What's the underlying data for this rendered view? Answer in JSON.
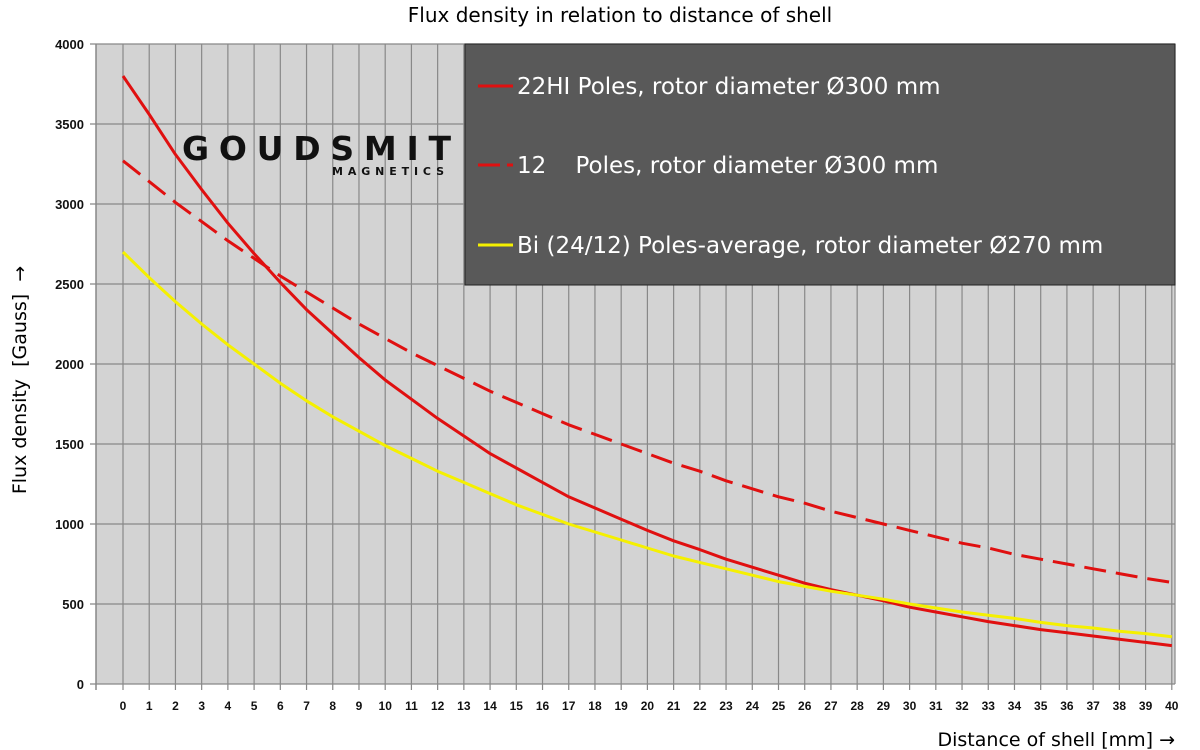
{
  "chart_data": {
    "type": "line",
    "title": "Flux density in relation to distance of shell",
    "xlabel": "Distance of shell [mm] →",
    "ylabel": "Flux density  [Gauss]  →",
    "xlim": [
      -1,
      40
    ],
    "ylim": [
      0,
      4000
    ],
    "yticks": [
      0,
      500,
      1000,
      1500,
      2000,
      2500,
      3000,
      3500,
      4000
    ],
    "xticks": [
      0,
      1,
      2,
      3,
      4,
      5,
      6,
      7,
      8,
      9,
      10,
      11,
      12,
      13,
      14,
      15,
      16,
      17,
      18,
      19,
      20,
      21,
      22,
      23,
      24,
      25,
      26,
      27,
      28,
      29,
      30,
      31,
      32,
      33,
      34,
      35,
      36,
      37,
      38,
      39,
      40
    ],
    "grid": true,
    "plot_background": "#d3d3d3",
    "legend_position": "top-right",
    "legend_background": "#595959",
    "x": [
      0,
      1,
      2,
      3,
      4,
      5,
      6,
      7,
      8,
      9,
      10,
      11,
      12,
      13,
      14,
      15,
      16,
      17,
      18,
      19,
      20,
      21,
      22,
      23,
      24,
      25,
      26,
      27,
      28,
      29,
      30,
      31,
      32,
      33,
      34,
      35,
      36,
      37,
      38,
      39,
      40
    ],
    "series": [
      {
        "name": "22HI Poles, rotor diameter Ø300 mm",
        "color": "#e01010",
        "style": "solid",
        "values": [
          3800,
          3560,
          3310,
          3090,
          2880,
          2690,
          2510,
          2340,
          2190,
          2040,
          1900,
          1780,
          1660,
          1550,
          1440,
          1350,
          1260,
          1170,
          1100,
          1030,
          960,
          895,
          840,
          780,
          730,
          680,
          630,
          590,
          555,
          520,
          480,
          450,
          420,
          390,
          365,
          340,
          320,
          300,
          280,
          260,
          240
        ]
      },
      {
        "name": "12    Poles, rotor diameter Ø300 mm",
        "color": "#e01010",
        "style": "dashed",
        "values": [
          3270,
          3140,
          3010,
          2890,
          2770,
          2660,
          2550,
          2450,
          2350,
          2250,
          2160,
          2070,
          1990,
          1910,
          1830,
          1760,
          1690,
          1620,
          1560,
          1500,
          1440,
          1380,
          1330,
          1270,
          1220,
          1170,
          1130,
          1080,
          1040,
          1000,
          960,
          920,
          880,
          850,
          810,
          780,
          750,
          720,
          690,
          660,
          635
        ]
      },
      {
        "name": "Bi (24/12) Poles-average, rotor diameter Ø270 mm",
        "color": "#f5f000",
        "style": "solid",
        "values": [
          2700,
          2540,
          2390,
          2250,
          2120,
          2000,
          1880,
          1770,
          1670,
          1580,
          1490,
          1410,
          1330,
          1260,
          1190,
          1120,
          1060,
          1000,
          950,
          900,
          850,
          800,
          760,
          720,
          680,
          640,
          610,
          580,
          555,
          530,
          500,
          475,
          450,
          430,
          410,
          385,
          365,
          350,
          330,
          315,
          295
        ]
      }
    ]
  },
  "logo": {
    "name": "GOUDSMIT",
    "sub": "MAGNETICS"
  }
}
